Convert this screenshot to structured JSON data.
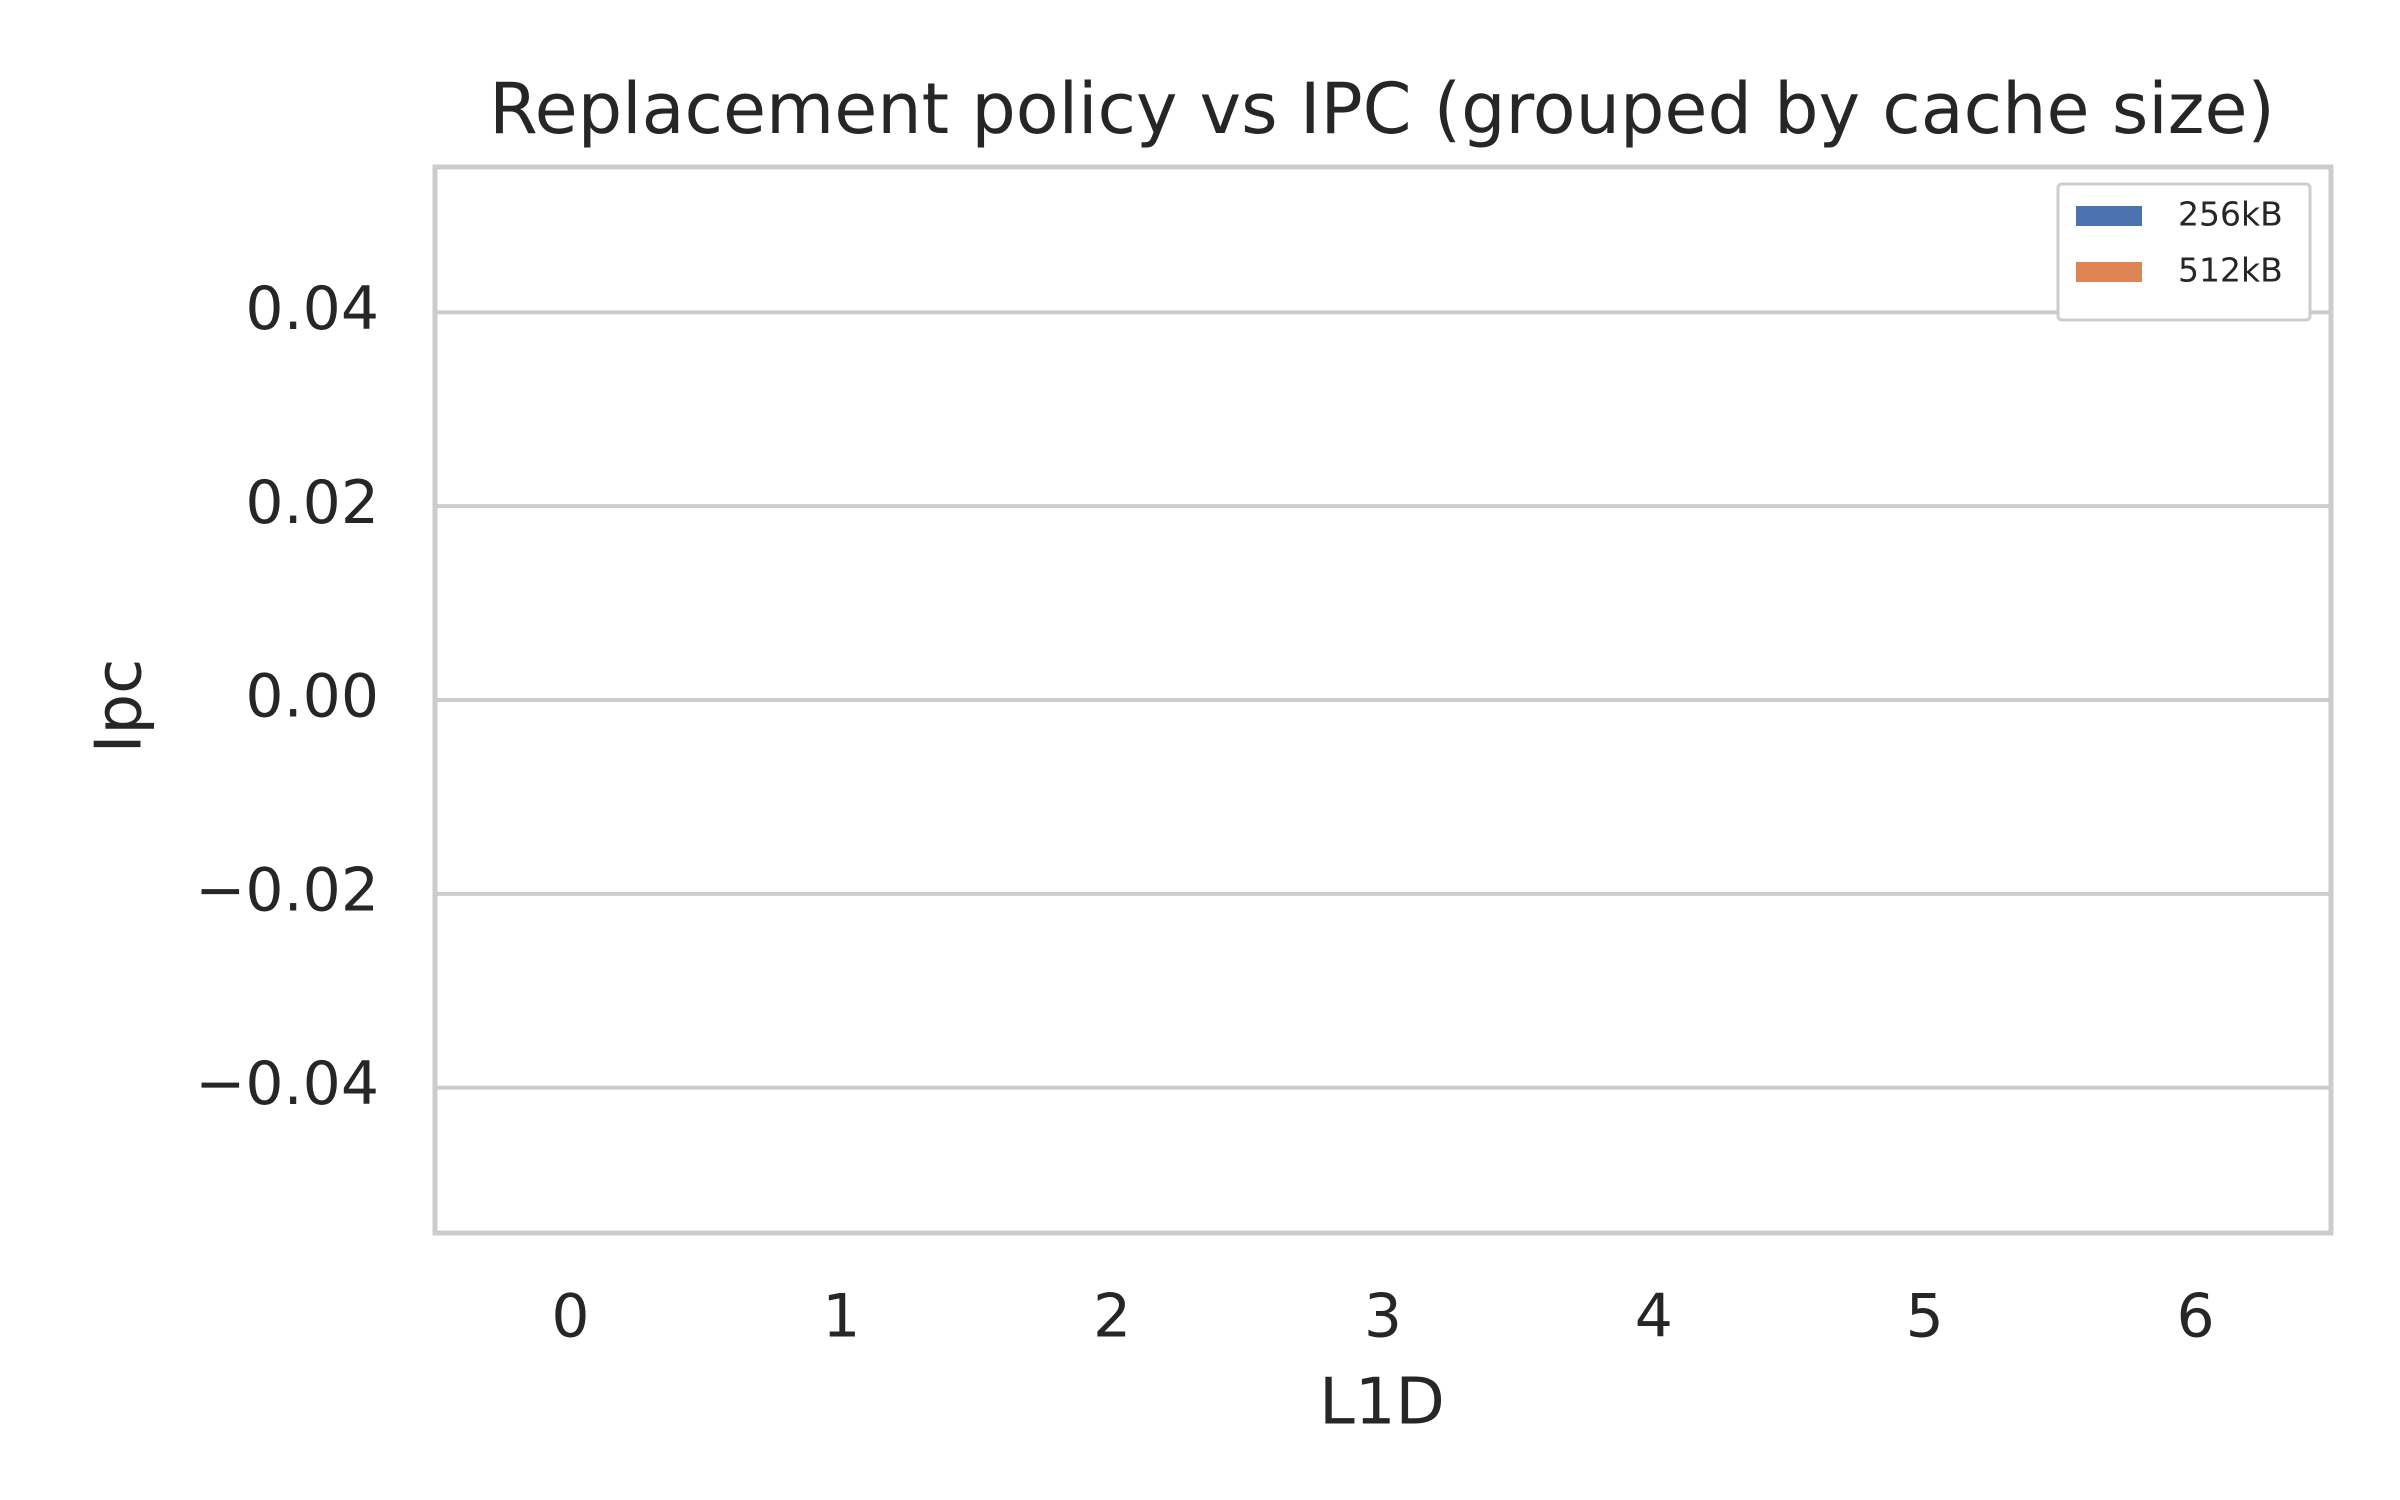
{
  "chart_data": {
    "type": "bar",
    "title": "Replacement policy vs IPC (grouped by cache size)",
    "x_label": "L1D",
    "y_label": "Ipc",
    "categories": [
      "0",
      "1",
      "2",
      "3",
      "4",
      "5",
      "6"
    ],
    "series": [
      {
        "name": "256kB",
        "color": "#4c72b0",
        "values": [
          null,
          null,
          null,
          null,
          null,
          null,
          null
        ]
      },
      {
        "name": "512kB",
        "color": "#dd8452",
        "values": [
          null,
          null,
          null,
          null,
          null,
          null,
          null
        ]
      }
    ],
    "ylim": [
      -0.055,
      0.055
    ],
    "yticks": [
      {
        "value": -0.04,
        "label": "−0.04"
      },
      {
        "value": -0.02,
        "label": "−0.02"
      },
      {
        "value": 0,
        "label": "0.00"
      },
      0.02,
      0.04
    ],
    "grid": true,
    "legend": "upper right"
  }
}
